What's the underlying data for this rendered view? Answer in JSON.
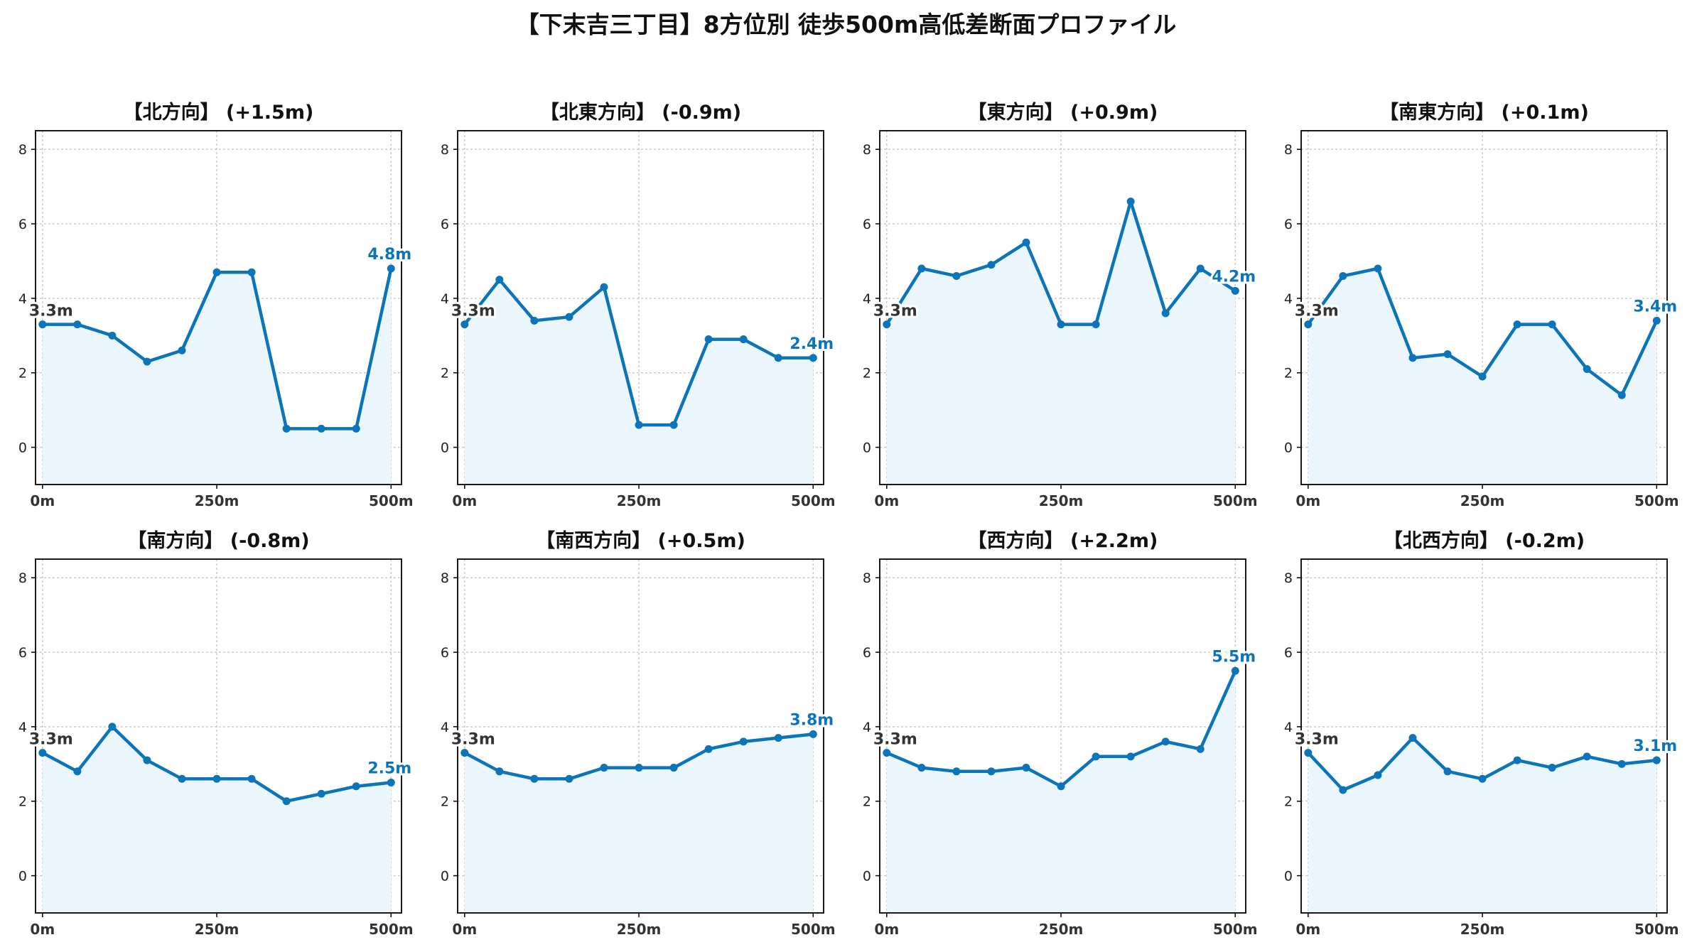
{
  "title": "【下末吉三丁目】8方位別 徒歩500m高低差断面プロファイル",
  "style": {
    "line_color": "#0c74b8",
    "fill_color": "#eaf6fc",
    "start_label_color": "#333333",
    "end_label_color": "#0c74b8",
    "grid_color": "#c8c8c8"
  },
  "chart_data": [
    {
      "type": "area",
      "title": "【北方向】 (+1.5m)",
      "x": [
        0,
        50,
        100,
        150,
        200,
        250,
        300,
        350,
        400,
        450,
        500
      ],
      "y": [
        3.3,
        3.3,
        3.0,
        2.3,
        2.6,
        4.7,
        4.7,
        0.5,
        0.5,
        0.5,
        4.8
      ],
      "start_label": "3.3m",
      "end_label": "4.8m",
      "xticks": [
        "0m",
        "250m",
        "500m"
      ],
      "yticks": [
        "0",
        "2",
        "4",
        "6",
        "8"
      ],
      "ylim": [
        -1,
        8.5
      ],
      "xlim": [
        -10,
        515
      ],
      "grid": true
    },
    {
      "type": "area",
      "title": "【北東方向】 (-0.9m)",
      "x": [
        0,
        50,
        100,
        150,
        200,
        250,
        300,
        350,
        400,
        450,
        500
      ],
      "y": [
        3.3,
        4.5,
        3.4,
        3.5,
        4.3,
        0.6,
        0.6,
        2.9,
        2.9,
        2.4,
        2.4
      ],
      "start_label": "3.3m",
      "end_label": "2.4m",
      "xticks": [
        "0m",
        "250m",
        "500m"
      ],
      "yticks": [
        "0",
        "2",
        "4",
        "6",
        "8"
      ],
      "ylim": [
        -1,
        8.5
      ],
      "xlim": [
        -10,
        515
      ],
      "grid": true
    },
    {
      "type": "area",
      "title": "【東方向】 (+0.9m)",
      "x": [
        0,
        50,
        100,
        150,
        200,
        250,
        300,
        350,
        400,
        450,
        500
      ],
      "y": [
        3.3,
        4.8,
        4.6,
        4.9,
        5.5,
        3.3,
        3.3,
        6.6,
        3.6,
        4.8,
        4.2
      ],
      "start_label": "3.3m",
      "end_label": "4.2m",
      "xticks": [
        "0m",
        "250m",
        "500m"
      ],
      "yticks": [
        "0",
        "2",
        "4",
        "6",
        "8"
      ],
      "ylim": [
        -1,
        8.5
      ],
      "xlim": [
        -10,
        515
      ],
      "grid": true
    },
    {
      "type": "area",
      "title": "【南東方向】 (+0.1m)",
      "x": [
        0,
        50,
        100,
        150,
        200,
        250,
        300,
        350,
        400,
        450,
        500
      ],
      "y": [
        3.3,
        4.6,
        4.8,
        2.4,
        2.5,
        1.9,
        3.3,
        3.3,
        2.1,
        1.4,
        3.4
      ],
      "start_label": "3.3m",
      "end_label": "3.4m",
      "xticks": [
        "0m",
        "250m",
        "500m"
      ],
      "yticks": [
        "0",
        "2",
        "4",
        "6",
        "8"
      ],
      "ylim": [
        -1,
        8.5
      ],
      "xlim": [
        -10,
        515
      ],
      "grid": true
    },
    {
      "type": "area",
      "title": "【南方向】 (-0.8m)",
      "x": [
        0,
        50,
        100,
        150,
        200,
        250,
        300,
        350,
        400,
        450,
        500
      ],
      "y": [
        3.3,
        2.8,
        4.0,
        3.1,
        2.6,
        2.6,
        2.6,
        2.0,
        2.2,
        2.4,
        2.5
      ],
      "start_label": "3.3m",
      "end_label": "2.5m",
      "xticks": [
        "0m",
        "250m",
        "500m"
      ],
      "yticks": [
        "0",
        "2",
        "4",
        "6",
        "8"
      ],
      "ylim": [
        -1,
        8.5
      ],
      "xlim": [
        -10,
        515
      ],
      "grid": true
    },
    {
      "type": "area",
      "title": "【南西方向】 (+0.5m)",
      "x": [
        0,
        50,
        100,
        150,
        200,
        250,
        300,
        350,
        400,
        450,
        500
      ],
      "y": [
        3.3,
        2.8,
        2.6,
        2.6,
        2.9,
        2.9,
        2.9,
        3.4,
        3.6,
        3.7,
        3.8
      ],
      "start_label": "3.3m",
      "end_label": "3.8m",
      "xticks": [
        "0m",
        "250m",
        "500m"
      ],
      "yticks": [
        "0",
        "2",
        "4",
        "6",
        "8"
      ],
      "ylim": [
        -1,
        8.5
      ],
      "xlim": [
        -10,
        515
      ],
      "grid": true
    },
    {
      "type": "area",
      "title": "【西方向】 (+2.2m)",
      "x": [
        0,
        50,
        100,
        150,
        200,
        250,
        300,
        350,
        400,
        450,
        500
      ],
      "y": [
        3.3,
        2.9,
        2.8,
        2.8,
        2.9,
        2.4,
        3.2,
        3.2,
        3.6,
        3.4,
        5.5
      ],
      "start_label": "3.3m",
      "end_label": "5.5m",
      "xticks": [
        "0m",
        "250m",
        "500m"
      ],
      "yticks": [
        "0",
        "2",
        "4",
        "6",
        "8"
      ],
      "ylim": [
        -1,
        8.5
      ],
      "xlim": [
        -10,
        515
      ],
      "grid": true
    },
    {
      "type": "area",
      "title": "【北西方向】 (-0.2m)",
      "x": [
        0,
        50,
        100,
        150,
        200,
        250,
        300,
        350,
        400,
        450,
        500
      ],
      "y": [
        3.3,
        2.3,
        2.7,
        3.7,
        2.8,
        2.6,
        3.1,
        2.9,
        3.2,
        3.0,
        3.1
      ],
      "start_label": "3.3m",
      "end_label": "3.1m",
      "xticks": [
        "0m",
        "250m",
        "500m"
      ],
      "yticks": [
        "0",
        "2",
        "4",
        "6",
        "8"
      ],
      "ylim": [
        -1,
        8.5
      ],
      "xlim": [
        -10,
        515
      ],
      "grid": true
    }
  ]
}
